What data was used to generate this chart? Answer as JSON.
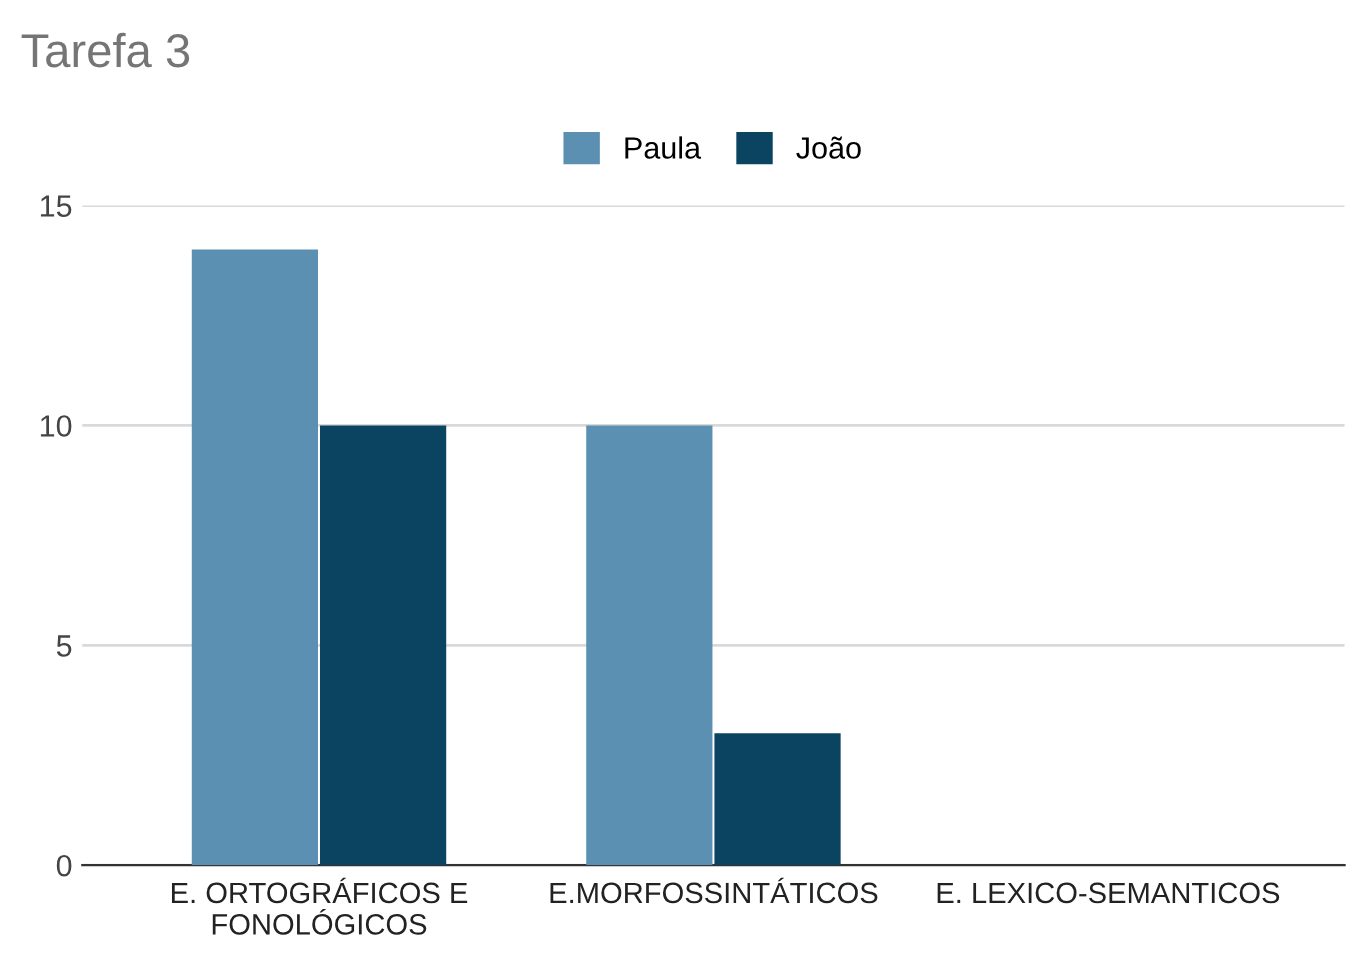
{
  "chart_data": {
    "type": "bar",
    "title": "Tarefa 3",
    "categories": [
      "E. ORTOGRÁFICOS E\nFONOLÓGICOS",
      "E.MORFOSSINTÁTICOS",
      "E. LEXICO-SEMANTICOS"
    ],
    "series": [
      {
        "name": "Paula",
        "color": "#5b90b2",
        "values": [
          14,
          10,
          0
        ]
      },
      {
        "name": "João",
        "color": "#0b4461",
        "values": [
          10,
          3,
          0
        ]
      }
    ],
    "ylim": [
      0,
      15
    ],
    "yticks": [
      0,
      5,
      10,
      15
    ],
    "grid": "y",
    "legend": "top"
  }
}
